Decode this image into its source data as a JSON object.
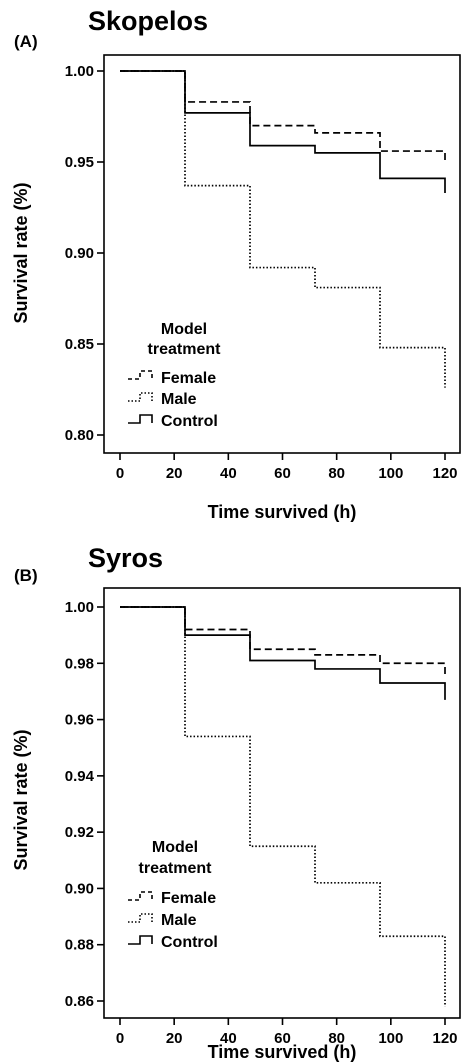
{
  "chart_data": [
    {
      "type": "line",
      "panel": "(A)",
      "title": "Skopelos",
      "xlabel": "Time survived (h)",
      "ylabel": "Survival rate (%)",
      "xlim": [
        0,
        120
      ],
      "ylim": [
        0.8,
        1.0
      ],
      "x_ticks": [
        "0",
        "20",
        "40",
        "60",
        "80",
        "100",
        "120"
      ],
      "y_ticks": [
        "0.80",
        "0.85",
        "0.90",
        "0.95",
        "1.00"
      ],
      "grid": false,
      "legend": {
        "title_line1": "Model",
        "title_line2": "treatment",
        "placement": "bottom-left",
        "entries": [
          "Female",
          "Male",
          "Control"
        ]
      },
      "series": [
        {
          "name": "Female",
          "style": "dashed",
          "x": [
            0,
            24,
            48,
            72,
            96,
            120
          ],
          "y": [
            1.0,
            0.983,
            0.97,
            0.966,
            0.956,
            0.949
          ]
        },
        {
          "name": "Male",
          "style": "dotted",
          "x": [
            0,
            24,
            48,
            72,
            96,
            120
          ],
          "y": [
            1.0,
            0.937,
            0.892,
            0.881,
            0.848,
            0.826
          ]
        },
        {
          "name": "Control",
          "style": "solid",
          "x": [
            0,
            24,
            48,
            72,
            96,
            120
          ],
          "y": [
            1.0,
            0.977,
            0.959,
            0.955,
            0.941,
            0.933
          ]
        }
      ]
    },
    {
      "type": "line",
      "panel": "(B)",
      "title": "Syros",
      "xlabel": "Time survived (h)",
      "ylabel": "Survival rate (%)",
      "xlim": [
        0,
        120
      ],
      "ylim": [
        0.86,
        1.0
      ],
      "x_ticks": [
        "0",
        "20",
        "40",
        "60",
        "80",
        "100",
        "120"
      ],
      "y_ticks": [
        "0.86",
        "0.88",
        "0.90",
        "0.92",
        "0.94",
        "0.96",
        "0.98",
        "1.00"
      ],
      "grid": false,
      "legend": {
        "title_line1": "Model",
        "title_line2": "treatment",
        "placement": "bottom-left",
        "entries": [
          "Female",
          "Male",
          "Control"
        ]
      },
      "series": [
        {
          "name": "Female",
          "style": "dashed",
          "x": [
            0,
            24,
            48,
            72,
            96,
            120
          ],
          "y": [
            1.0,
            0.992,
            0.985,
            0.983,
            0.98,
            0.976
          ]
        },
        {
          "name": "Male",
          "style": "dotted",
          "x": [
            0,
            24,
            48,
            72,
            96,
            120
          ],
          "y": [
            1.0,
            0.954,
            0.915,
            0.902,
            0.883,
            0.858
          ]
        },
        {
          "name": "Control",
          "style": "solid",
          "x": [
            0,
            24,
            48,
            72,
            96,
            120
          ],
          "y": [
            1.0,
            0.99,
            0.981,
            0.978,
            0.973,
            0.967
          ]
        }
      ]
    }
  ]
}
